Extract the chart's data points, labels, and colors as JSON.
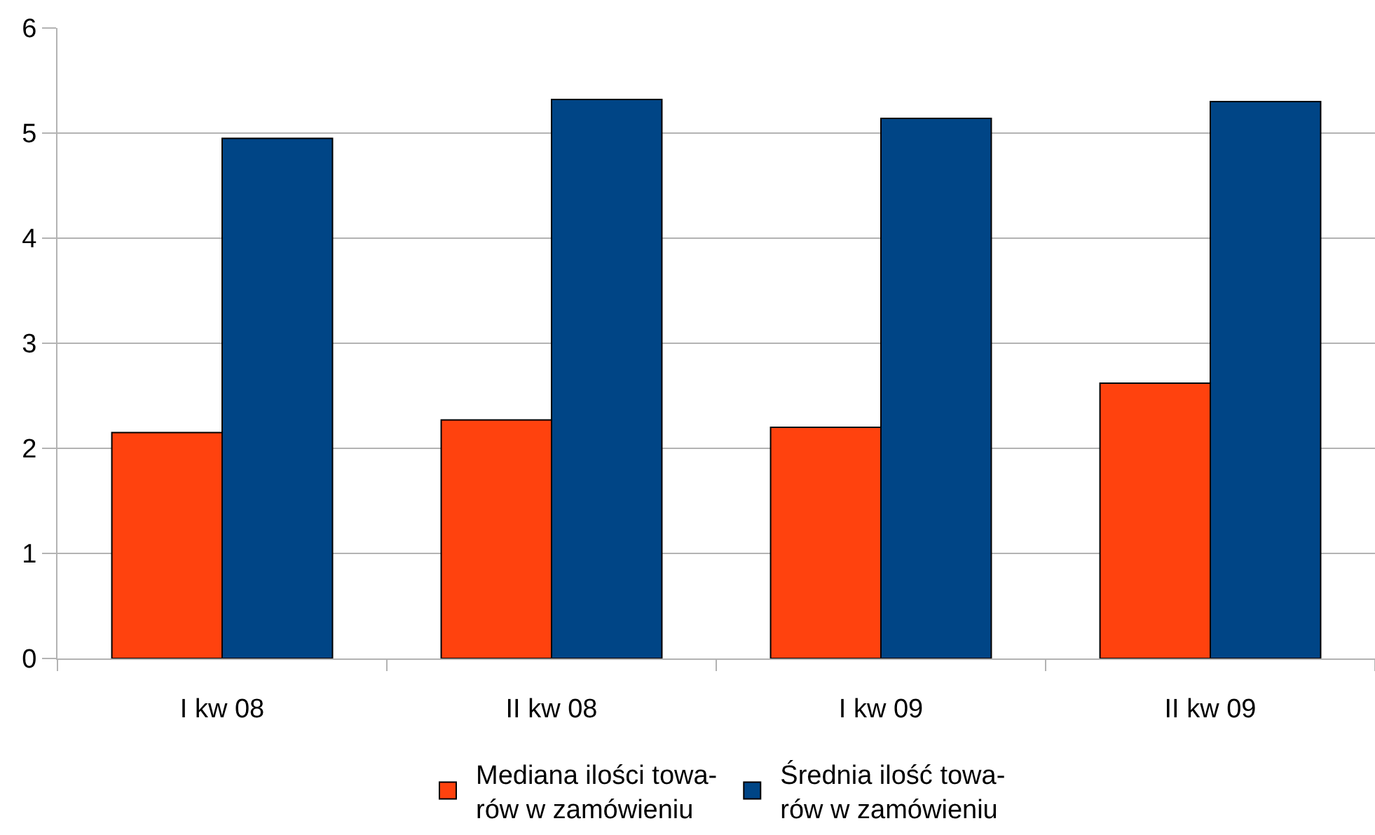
{
  "chart_data": {
    "type": "bar",
    "categories": [
      "I kw 08",
      "II kw 08",
      "I kw 09",
      "II kw 09"
    ],
    "series": [
      {
        "name": "Mediana ilości towa-\nrów w zamówieniu",
        "color": "#ff420e",
        "values": [
          2.15,
          2.27,
          2.2,
          2.62
        ]
      },
      {
        "name": "Średnia ilość towa-\nrów w zamówieniu",
        "color": "#004586",
        "values": [
          4.95,
          5.32,
          5.14,
          5.3
        ]
      }
    ],
    "ylim": [
      0,
      6
    ],
    "yticks": [
      0,
      1,
      2,
      3,
      4,
      5,
      6
    ],
    "grid": "y",
    "legend": "bottom"
  }
}
